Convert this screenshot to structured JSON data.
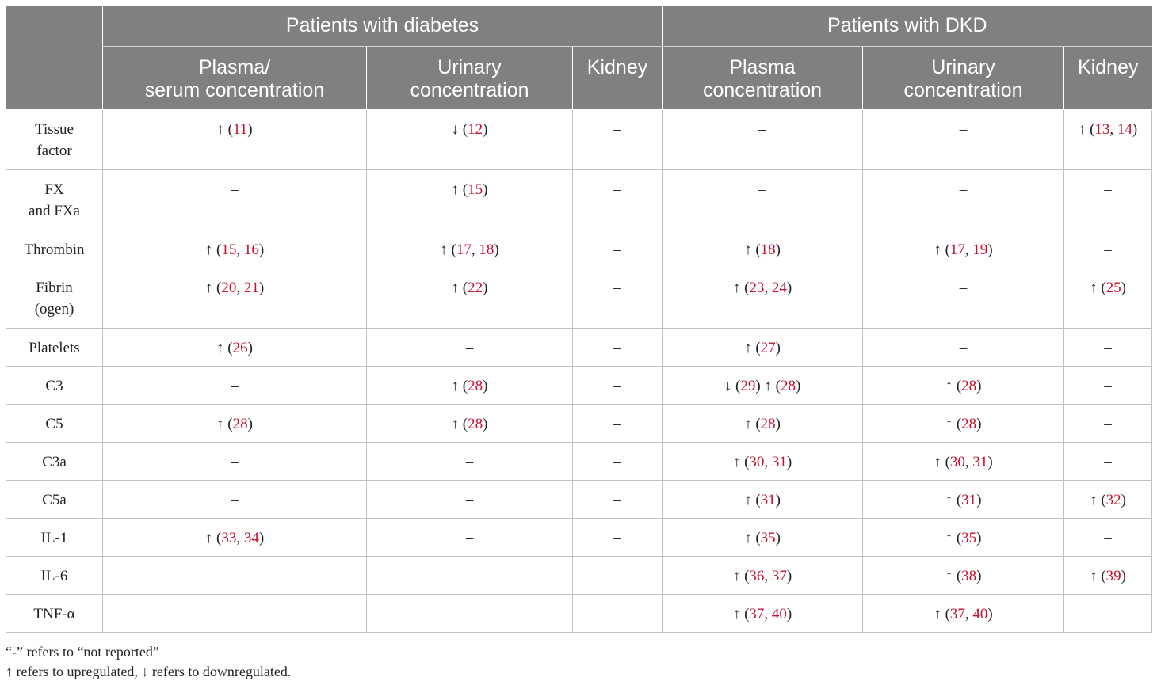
{
  "header": {
    "groups": [
      "Patients with diabetes",
      "Patients with DKD"
    ],
    "subheaders": [
      [
        "Plasma/",
        "serum concentration"
      ],
      [
        "Urinary",
        "concentration"
      ],
      [
        "Kidney"
      ],
      [
        "Plasma",
        "concentration"
      ],
      [
        "Urinary",
        "concentration"
      ],
      [
        "Kidney"
      ]
    ]
  },
  "rows": [
    {
      "label": [
        "Tissue",
        "factor"
      ],
      "cells": [
        {
          "sym": "↑",
          "refs": [
            "11"
          ]
        },
        {
          "sym": "↓",
          "refs": [
            "12"
          ]
        },
        {
          "sym": "–",
          "refs": []
        },
        {
          "sym": "–",
          "refs": []
        },
        {
          "sym": "–",
          "refs": []
        },
        {
          "sym": "↑",
          "refs": [
            "13",
            "14"
          ]
        }
      ]
    },
    {
      "label": [
        "FX",
        "and FXa"
      ],
      "cells": [
        {
          "sym": "–",
          "refs": []
        },
        {
          "sym": "↑",
          "refs": [
            "15"
          ]
        },
        {
          "sym": "–",
          "refs": []
        },
        {
          "sym": "–",
          "refs": []
        },
        {
          "sym": "–",
          "refs": []
        },
        {
          "sym": "–",
          "refs": []
        }
      ]
    },
    {
      "label": [
        "Thrombin"
      ],
      "cells": [
        {
          "sym": "↑",
          "refs": [
            "15",
            "16"
          ]
        },
        {
          "sym": "↑",
          "refs": [
            "17",
            "18"
          ]
        },
        {
          "sym": "–",
          "refs": []
        },
        {
          "sym": "↑",
          "refs": [
            "18"
          ]
        },
        {
          "sym": "↑",
          "refs": [
            "17",
            "19"
          ]
        },
        {
          "sym": "–",
          "refs": []
        }
      ]
    },
    {
      "label": [
        "Fibrin",
        "(ogen)"
      ],
      "cells": [
        {
          "sym": "↑",
          "refs": [
            "20",
            "21"
          ]
        },
        {
          "sym": "↑",
          "refs": [
            "22"
          ]
        },
        {
          "sym": "–",
          "refs": []
        },
        {
          "sym": "↑",
          "refs": [
            "23",
            "24"
          ]
        },
        {
          "sym": "–",
          "refs": []
        },
        {
          "sym": "↑",
          "refs": [
            "25"
          ]
        }
      ]
    },
    {
      "label": [
        "Platelets"
      ],
      "cells": [
        {
          "sym": "↑",
          "refs": [
            "26"
          ]
        },
        {
          "sym": "–",
          "refs": []
        },
        {
          "sym": "–",
          "refs": []
        },
        {
          "sym": "↑",
          "refs": [
            "27"
          ]
        },
        {
          "sym": "–",
          "refs": []
        },
        {
          "sym": "–",
          "refs": []
        }
      ]
    },
    {
      "label": [
        "C3"
      ],
      "cells": [
        {
          "sym": "–",
          "refs": []
        },
        {
          "sym": "↑",
          "refs": [
            "28"
          ]
        },
        {
          "sym": "–",
          "refs": []
        },
        {
          "sym": "↓",
          "refs": [
            "29"
          ],
          "sym2": "↑",
          "refs2": [
            "28"
          ]
        },
        {
          "sym": "↑",
          "refs": [
            "28"
          ]
        },
        {
          "sym": "–",
          "refs": []
        }
      ]
    },
    {
      "label": [
        "C5"
      ],
      "cells": [
        {
          "sym": "↑",
          "refs": [
            "28"
          ]
        },
        {
          "sym": "↑",
          "refs": [
            "28"
          ]
        },
        {
          "sym": "–",
          "refs": []
        },
        {
          "sym": "↑",
          "refs": [
            "28"
          ]
        },
        {
          "sym": "↑",
          "refs": [
            "28"
          ]
        },
        {
          "sym": "–",
          "refs": []
        }
      ]
    },
    {
      "label": [
        "C3a"
      ],
      "cells": [
        {
          "sym": "–",
          "refs": []
        },
        {
          "sym": "–",
          "refs": []
        },
        {
          "sym": "–",
          "refs": []
        },
        {
          "sym": "↑",
          "refs": [
            "30",
            "31"
          ]
        },
        {
          "sym": "↑",
          "refs": [
            "30",
            "31"
          ]
        },
        {
          "sym": "–",
          "refs": []
        }
      ]
    },
    {
      "label": [
        "C5a"
      ],
      "cells": [
        {
          "sym": "–",
          "refs": []
        },
        {
          "sym": "–",
          "refs": []
        },
        {
          "sym": "–",
          "refs": []
        },
        {
          "sym": "↑",
          "refs": [
            "31"
          ]
        },
        {
          "sym": "↑",
          "refs": [
            "31"
          ]
        },
        {
          "sym": "↑",
          "refs": [
            "32"
          ]
        }
      ]
    },
    {
      "label": [
        "IL-1"
      ],
      "cells": [
        {
          "sym": "↑",
          "refs": [
            "33",
            "34"
          ]
        },
        {
          "sym": "–",
          "refs": []
        },
        {
          "sym": "–",
          "refs": []
        },
        {
          "sym": "↑",
          "refs": [
            "35"
          ]
        },
        {
          "sym": "↑",
          "refs": [
            "35"
          ]
        },
        {
          "sym": "–",
          "refs": []
        }
      ]
    },
    {
      "label": [
        "IL-6"
      ],
      "cells": [
        {
          "sym": "–",
          "refs": []
        },
        {
          "sym": "–",
          "refs": []
        },
        {
          "sym": "–",
          "refs": []
        },
        {
          "sym": "↑",
          "refs": [
            "36",
            "37"
          ]
        },
        {
          "sym": "↑",
          "refs": [
            "38"
          ]
        },
        {
          "sym": "↑",
          "refs": [
            "39"
          ]
        }
      ]
    },
    {
      "label": [
        "TNF-α"
      ],
      "cells": [
        {
          "sym": "–",
          "refs": []
        },
        {
          "sym": "–",
          "refs": []
        },
        {
          "sym": "–",
          "refs": []
        },
        {
          "sym": "↑",
          "refs": [
            "37",
            "40"
          ]
        },
        {
          "sym": "↑",
          "refs": [
            "37",
            "40"
          ]
        },
        {
          "sym": "–",
          "refs": []
        }
      ]
    }
  ],
  "notes": [
    "“-” refers to “not reported”",
    "↑ refers to upregulated, ↓ refers to downregulated."
  ],
  "colors": {
    "header_bg": "#808080",
    "header_text": "#ffffff",
    "reference_link": "#c8102e",
    "grid_line": "#bfbfbf"
  }
}
